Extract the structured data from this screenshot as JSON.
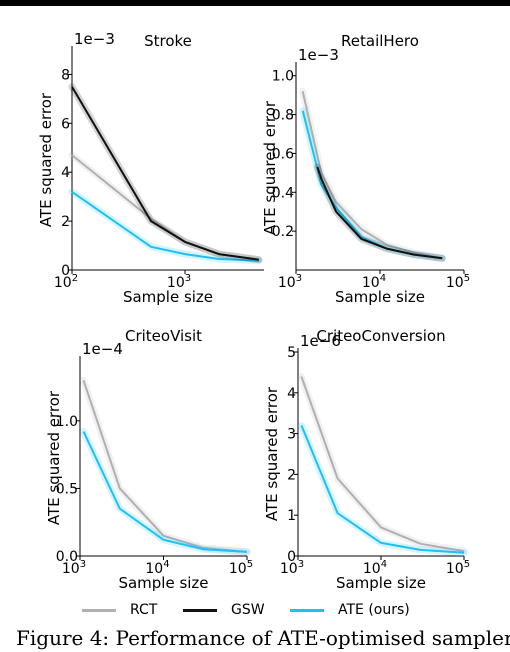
{
  "colors": {
    "RCT": "#b0b0b0",
    "GSW": "#111111",
    "ATE (ours)": "#1ec0f5"
  },
  "legend": [
    {
      "name": "RCT",
      "color": "#b0b0b0"
    },
    {
      "name": "GSW",
      "color": "#111111"
    },
    {
      "name": "ATE (ours)",
      "color": "#1ec0f5"
    }
  ],
  "caption": "Figure 4: Performance of ATE-optimised sampler",
  "chart_data": [
    {
      "type": "line",
      "title": "Stroke",
      "xlabel": "Sample size",
      "ylabel": "ATE squared error",
      "multiplier": "1e−3",
      "xscale": "log",
      "xlim": [
        100,
        5000
      ],
      "ylim": [
        0,
        9
      ],
      "yticks": [
        0,
        2,
        4,
        6,
        8
      ],
      "ytick_labels": [
        "0",
        "2",
        "4",
        "6",
        "8"
      ],
      "xticks": [
        100,
        1000
      ],
      "xtick_labels": [
        [
          "10",
          "2"
        ],
        [
          "10",
          "3"
        ]
      ],
      "series": [
        {
          "name": "RCT",
          "x": [
            100,
            500,
            1000,
            2000,
            4500
          ],
          "y": [
            4.7,
            2.1,
            1.15,
            0.65,
            0.42
          ]
        },
        {
          "name": "GSW",
          "x": [
            100,
            500,
            1000,
            2000,
            4500
          ],
          "y": [
            7.5,
            2.0,
            1.15,
            0.65,
            0.42
          ]
        },
        {
          "name": "ATE (ours)",
          "x": [
            100,
            500,
            1000,
            2000,
            4500
          ],
          "y": [
            3.2,
            0.95,
            0.65,
            0.45,
            0.38
          ]
        }
      ]
    },
    {
      "type": "line",
      "title": "RetailHero",
      "xlabel": "Sample size",
      "ylabel": "ATE squared error",
      "multiplier": "1e−3",
      "xscale": "log",
      "xlim": [
        1000,
        100000
      ],
      "ylim": [
        0,
        1.05
      ],
      "yticks": [
        0.2,
        0.4,
        0.6,
        0.8,
        1.0
      ],
      "ytick_labels": [
        "0.2",
        "0.4",
        "0.6",
        "0.8",
        "1.0"
      ],
      "xticks": [
        1000,
        10000,
        100000
      ],
      "xtick_labels": [
        [
          "10",
          "3"
        ],
        [
          "10",
          "4"
        ],
        [
          "10",
          "5"
        ]
      ],
      "series": [
        {
          "name": "RCT",
          "x": [
            1200,
            2000,
            3000,
            6000,
            12000,
            25000,
            55000
          ],
          "y": [
            0.92,
            0.5,
            0.35,
            0.21,
            0.13,
            0.09,
            0.06
          ]
        },
        {
          "name": "GSW",
          "x": [
            1800,
            2000,
            3000,
            6000,
            12000,
            25000,
            55000
          ],
          "y": [
            0.53,
            0.47,
            0.3,
            0.16,
            0.11,
            0.08,
            0.06
          ]
        },
        {
          "name": "ATE (ours)",
          "x": [
            1200,
            2000,
            3000,
            6000,
            12000,
            25000,
            55000
          ],
          "y": [
            0.82,
            0.44,
            0.32,
            0.17,
            0.11,
            0.08,
            0.06
          ]
        }
      ]
    },
    {
      "type": "line",
      "title": "CriteoVisit",
      "xlabel": "Sample size",
      "ylabel": "ATE squared error",
      "multiplier": "1e−4",
      "xscale": "log",
      "xlim": [
        1000,
        100000
      ],
      "ylim": [
        0,
        1.45
      ],
      "yticks": [
        0.0,
        0.5,
        1.0
      ],
      "ytick_labels": [
        "0.0",
        "0.5",
        "1.0"
      ],
      "xticks": [
        1000,
        10000,
        100000
      ],
      "xtick_labels": [
        [
          "10",
          "3"
        ],
        [
          "10",
          "4"
        ],
        [
          "10",
          "5"
        ]
      ],
      "series": [
        {
          "name": "RCT",
          "x": [
            1100,
            3000,
            10000,
            30000,
            100000
          ],
          "y": [
            1.3,
            0.5,
            0.15,
            0.06,
            0.03
          ]
        },
        {
          "name": "ATE (ours)",
          "x": [
            1100,
            3000,
            10000,
            30000,
            100000
          ],
          "y": [
            0.92,
            0.35,
            0.12,
            0.05,
            0.03
          ]
        }
      ]
    },
    {
      "type": "line",
      "title": "CriteoConversion",
      "xlabel": "Sample size",
      "ylabel": "ATE squared error",
      "multiplier": "1e−6",
      "xscale": "log",
      "xlim": [
        1000,
        100000
      ],
      "ylim": [
        0,
        5
      ],
      "yticks": [
        0,
        1,
        2,
        3,
        4,
        5
      ],
      "ytick_labels": [
        "0",
        "1",
        "2",
        "3",
        "4",
        "5"
      ],
      "xticks": [
        1000,
        10000,
        100000
      ],
      "xtick_labels": [
        [
          "10",
          "3"
        ],
        [
          "10",
          "4"
        ],
        [
          "10",
          "5"
        ]
      ],
      "series": [
        {
          "name": "RCT",
          "x": [
            1100,
            3000,
            10000,
            30000,
            100000
          ],
          "y": [
            4.4,
            1.9,
            0.7,
            0.3,
            0.12
          ]
        },
        {
          "name": "ATE (ours)",
          "x": [
            1100,
            3000,
            10000,
            30000,
            100000
          ],
          "y": [
            3.2,
            1.05,
            0.32,
            0.15,
            0.08
          ]
        }
      ]
    }
  ]
}
